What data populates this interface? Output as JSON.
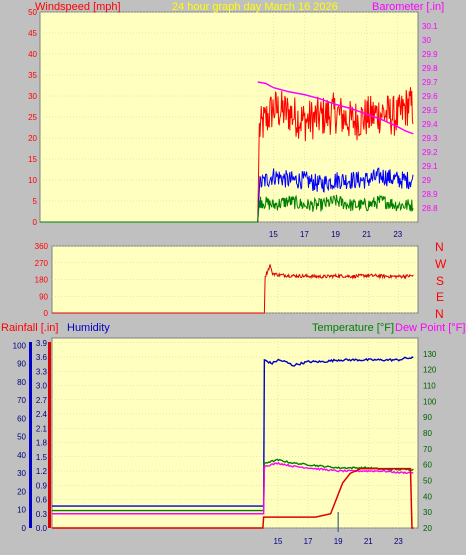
{
  "panel1": {
    "left_title": "Windspeed [mph]",
    "center_title": "24 hour graph day   March 16 2026",
    "right_title": "Barometer [.in]"
  },
  "panel3": {
    "rain_title": "Rainfall [.in]",
    "humidity_title": "Humidity",
    "temp_title": "Temperature [°F]",
    "dew_title": "Dew Point [°F]"
  },
  "direction_labels": [
    "N",
    "W",
    "S",
    "E",
    "N"
  ],
  "colors": {
    "plot_bg": "#ffffc0",
    "wind_avg": "#0000ff",
    "wind_gust": "#ff0000",
    "wind_low": "#008000",
    "barometer": "#ff00ff",
    "direction": "#e00000",
    "humidity": "#0000c8",
    "temperature": "#008000",
    "dewpoint": "#ff00ff",
    "rainfall": "#e00000",
    "title_yellow": "#ffff00"
  },
  "chart_data": [
    {
      "type": "line",
      "name": "wind-barometer",
      "title": "24 hour graph day   March 16 2026",
      "xticks": [
        15,
        17,
        19,
        21,
        23
      ],
      "xlim": [
        0,
        24.3
      ],
      "ylabel": "Windspeed [mph]",
      "ylim": [
        0,
        50
      ],
      "yticks": [
        0,
        5,
        10,
        15,
        20,
        25,
        30,
        35,
        40,
        45,
        50
      ],
      "y2label": "Barometer [.in]",
      "y2lim": [
        28.7,
        30.2
      ],
      "y2ticks": [
        28.8,
        28.9,
        29.0,
        29.1,
        29.2,
        29.3,
        29.4,
        29.5,
        29.6,
        29.7,
        29.8,
        29.9,
        30.0,
        30.1
      ],
      "y2ticklabels": [
        "28.8",
        "28.9",
        "29",
        "29.1",
        "29.2",
        "29.3",
        "29.4",
        "29.5",
        "29.6",
        "29.7",
        "29.8",
        "29.9",
        "30",
        "30.1"
      ],
      "series": [
        {
          "key": "gust",
          "axis": "y",
          "x": [
            0,
            14.0,
            14.1,
            15,
            16,
            17,
            18,
            19,
            20,
            21,
            22,
            23,
            23.7,
            24.0
          ],
          "values": [
            0,
            0,
            22,
            27,
            26,
            24,
            25,
            26,
            24,
            25,
            26,
            25,
            28,
            27
          ]
        },
        {
          "key": "avg",
          "axis": "y",
          "x": [
            0,
            14.0,
            14.1,
            15,
            16,
            17,
            18,
            19,
            20,
            21,
            22,
            23,
            24.0
          ],
          "values": [
            0,
            0,
            9,
            11,
            10,
            10,
            9,
            10,
            10,
            10,
            11,
            10,
            10
          ]
        },
        {
          "key": "low",
          "axis": "y",
          "x": [
            0,
            14.0,
            14.1,
            15,
            16,
            17,
            18,
            19,
            20,
            21,
            22,
            23,
            24.0
          ],
          "values": [
            0,
            0,
            5,
            4,
            5,
            4,
            4,
            5,
            4,
            4,
            5,
            4,
            4
          ]
        },
        {
          "key": "barometer",
          "axis": "y2",
          "x": [
            14.0,
            14.5,
            15,
            16,
            17,
            18,
            19,
            20,
            21,
            22,
            23,
            23.5,
            24.0
          ],
          "values": [
            29.7,
            29.69,
            29.66,
            29.63,
            29.61,
            29.58,
            29.54,
            29.51,
            29.47,
            29.43,
            29.38,
            29.35,
            29.33
          ]
        }
      ]
    },
    {
      "type": "line",
      "name": "wind-direction",
      "xticks": [
        15,
        17,
        19,
        21,
        23
      ],
      "xlim": [
        0,
        24.3
      ],
      "ylim": [
        0,
        360
      ],
      "yticks": [
        0,
        90,
        180,
        270,
        360
      ],
      "series": [
        {
          "key": "direction",
          "x": [
            0,
            14.1,
            14.15,
            14.5,
            14.6,
            15,
            16,
            17,
            18,
            19,
            20,
            21,
            22,
            23,
            24.0
          ],
          "values": [
            0,
            0,
            195,
            260,
            215,
            205,
            200,
            198,
            195,
            200,
            197,
            202,
            198,
            196,
            200
          ]
        }
      ]
    },
    {
      "type": "line",
      "name": "rain-humidity-temp",
      "xticks": [
        15,
        17,
        19,
        21,
        23
      ],
      "xlim": [
        0,
        24.3
      ],
      "ylabel": "Rainfall [.in]",
      "ylim": [
        0,
        4.0
      ],
      "yticks": [
        0,
        0.3,
        0.6,
        0.9,
        1.2,
        1.5,
        1.8,
        2.1,
        2.4,
        2.7,
        3.0,
        3.3,
        3.6,
        3.9
      ],
      "humidity_ticks": [
        0,
        10,
        20,
        30,
        40,
        50,
        60,
        70,
        80,
        90,
        100
      ],
      "humidity_lim": [
        0,
        104
      ],
      "y2label": "Temperature [°F]",
      "y2lim": [
        20,
        140
      ],
      "y2ticks": [
        20,
        30,
        40,
        50,
        60,
        70,
        80,
        90,
        100,
        110,
        120,
        130
      ],
      "x_marker": 19,
      "series": [
        {
          "key": "humidity",
          "axis": "humidity",
          "x": [
            0,
            14.05,
            14.1,
            14.6,
            15,
            15.5,
            16,
            17,
            18,
            19,
            20,
            21,
            22,
            23,
            23.5,
            24.0
          ],
          "values": [
            12,
            12,
            92,
            90,
            92,
            91,
            89,
            91,
            91,
            92,
            92,
            92,
            92,
            92,
            93,
            93
          ]
        },
        {
          "key": "temperature",
          "axis": "y2",
          "x": [
            0,
            14.05,
            14.1,
            15,
            16,
            17,
            18,
            19,
            20,
            21,
            22,
            23,
            24.0
          ],
          "values": [
            31,
            31,
            61,
            63,
            61,
            60,
            59,
            58,
            58,
            58,
            57,
            57,
            57
          ]
        },
        {
          "key": "dewpoint",
          "axis": "y2",
          "x": [
            0,
            14.05,
            14.1,
            15,
            16,
            17,
            18,
            19,
            20,
            21,
            22,
            23,
            24.0
          ],
          "values": [
            29,
            29,
            59,
            61,
            59,
            58,
            57,
            56,
            56,
            56,
            56,
            55,
            55
          ]
        },
        {
          "key": "rainfall",
          "axis": "y",
          "x": [
            0,
            14.0,
            14.05,
            17.5,
            18.5,
            19.3,
            19.8,
            20.5,
            21.5,
            22.5,
            23.8,
            23.9,
            24.0
          ],
          "values": [
            0,
            0,
            0.23,
            0.23,
            0.3,
            0.95,
            1.15,
            1.25,
            1.25,
            1.25,
            1.25,
            0.0,
            0.0
          ]
        }
      ]
    }
  ]
}
